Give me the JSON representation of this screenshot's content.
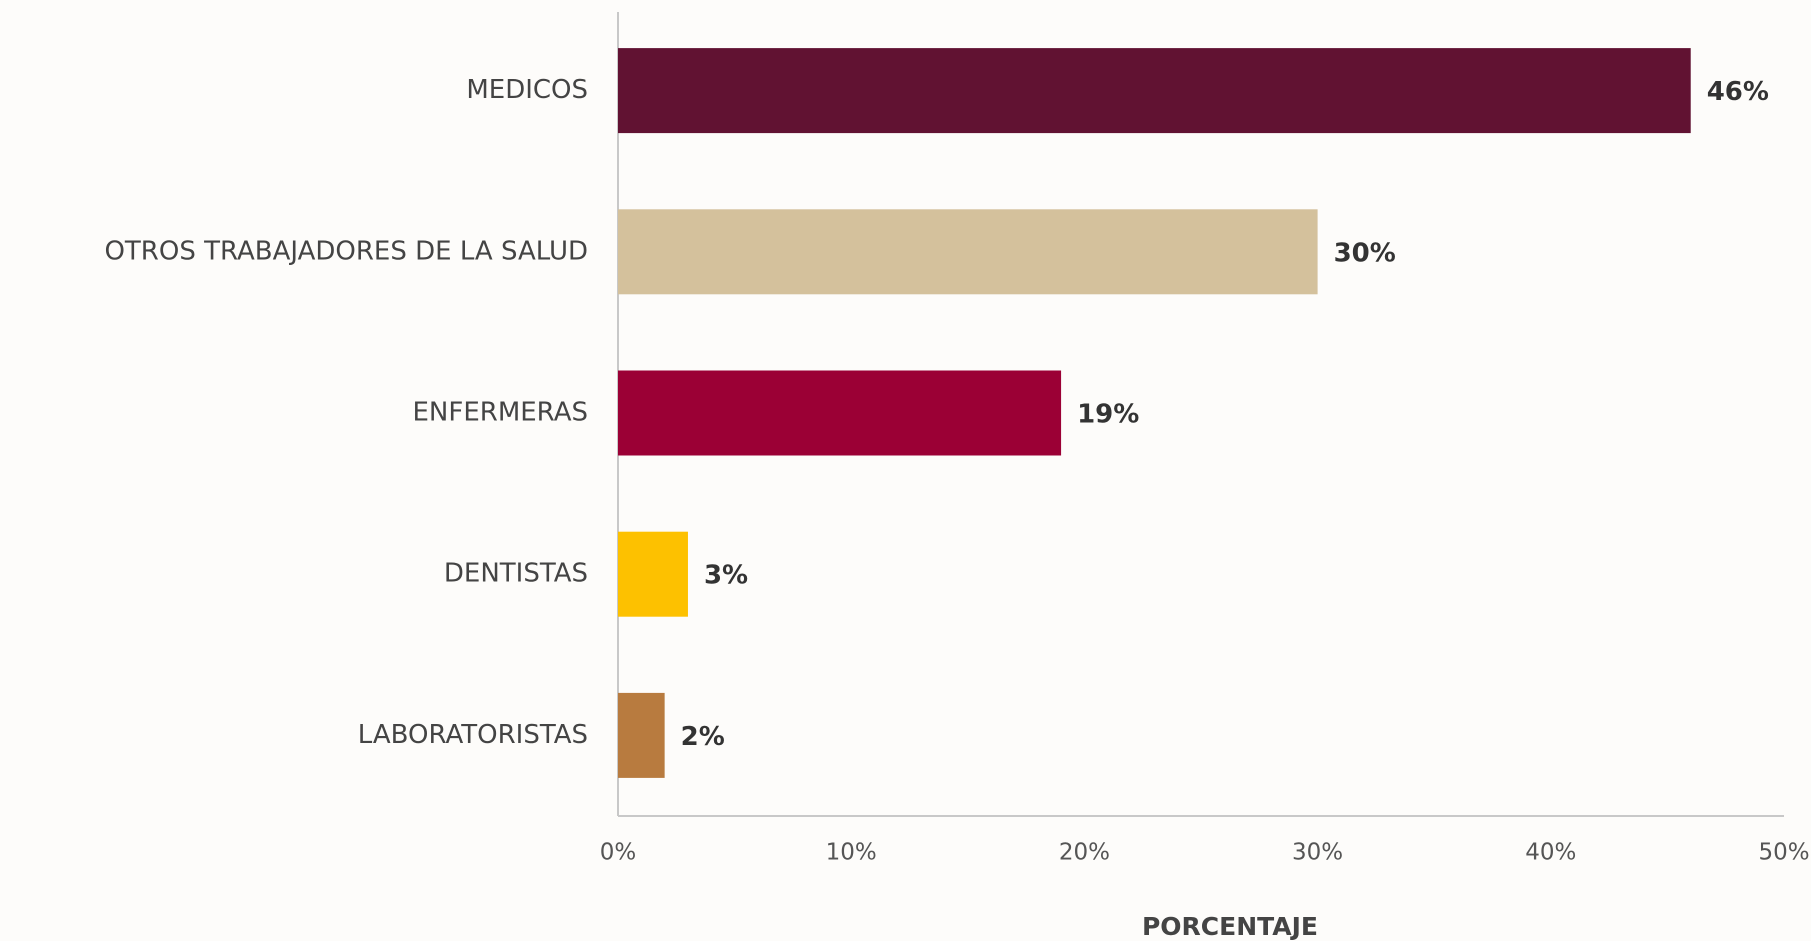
{
  "chart_data": {
    "type": "barh",
    "categories": [
      "MEDICOS",
      "OTROS TRABAJADORES DE LA SALUD",
      "ENFERMERAS",
      "DENTISTAS",
      "LABORATORISTAS"
    ],
    "values": [
      46,
      30,
      19,
      3,
      2
    ],
    "value_labels": [
      "46%",
      "30%",
      "19%",
      "3%",
      "2%"
    ],
    "colors": [
      "#611232",
      "#d4c19c",
      "#9b0035",
      "#fdc100",
      "#b87b3f"
    ],
    "xlim": [
      0,
      50
    ],
    "xticks": [
      {
        "value": 0,
        "label": "0%"
      },
      {
        "value": 10,
        "label": "10%"
      },
      {
        "value": 20,
        "label": "20%"
      },
      {
        "value": 30,
        "label": "30%"
      },
      {
        "value": 40,
        "label": "40%"
      },
      {
        "value": 50,
        "label": "50%"
      }
    ],
    "xlabel": "PORCENTAJE",
    "grid": false
  }
}
